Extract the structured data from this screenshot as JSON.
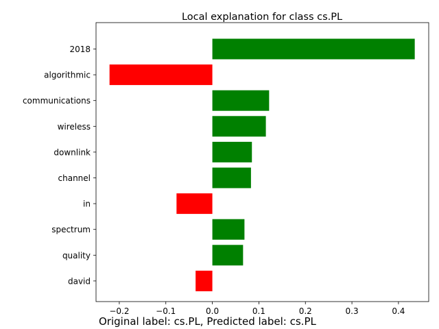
{
  "chart_data": {
    "type": "bar",
    "orientation": "horizontal",
    "title": "Local explanation for class cs.PL",
    "categories": [
      "2018",
      "algorithmic",
      "communications",
      "wireless",
      "downlink",
      "channel",
      "in",
      "spectrum",
      "quality",
      "david"
    ],
    "values": [
      0.435,
      -0.221,
      0.122,
      0.115,
      0.085,
      0.083,
      -0.077,
      0.069,
      0.066,
      -0.036
    ],
    "xlim": [
      -0.25,
      0.465
    ],
    "xticks": [
      -0.2,
      -0.1,
      0.0,
      0.1,
      0.2,
      0.3,
      0.4
    ],
    "xtick_labels": [
      "−0.2",
      "−0.1",
      "0.0",
      "0.1",
      "0.2",
      "0.3",
      "0.4"
    ],
    "xlabel": "",
    "ylabel": "",
    "grid": false,
    "colors": {
      "positive": "#008000",
      "negative": "#ff0000"
    }
  },
  "caption": "Original label: cs.PL, Predicted label: cs.PL"
}
